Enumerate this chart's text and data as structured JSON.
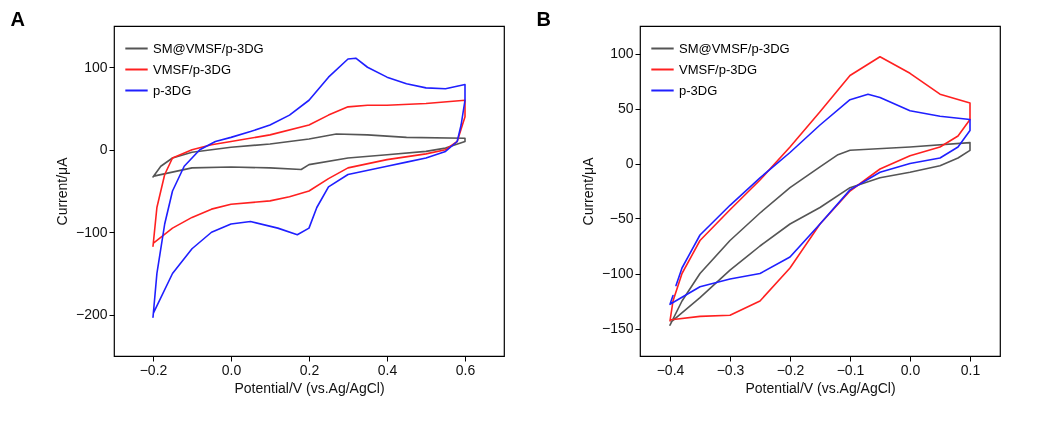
{
  "chart_data": [
    {
      "type": "line",
      "title": "A",
      "xlabel": "Potential/V (vs.Ag/AgCl)",
      "ylabel": "Current/μA",
      "xlim": [
        -0.3,
        0.7
      ],
      "ylim": [
        -250,
        150
      ],
      "xticks": [
        -0.2,
        {
          "value": 0,
          "label": "0.0"
        },
        0.2,
        0.4,
        0.6
      ],
      "yticks": [
        -200,
        -100,
        0,
        100
      ],
      "grid": false,
      "legend": "top left",
      "series": [
        {
          "name": "SM@VMSF/p-3DG",
          "color": "#555555",
          "line_style": "solid",
          "x": [
            -0.2,
            -0.18,
            -0.15,
            -0.1,
            0,
            0.1,
            0.2,
            0.27,
            0.35,
            0.45,
            0.6,
            0.6,
            0.55,
            0.5,
            0.4,
            0.3,
            0.2,
            0.18,
            0.1,
            0,
            -0.1,
            -0.198
          ],
          "values": [
            -33,
            -20,
            -10,
            -3,
            3,
            7,
            13,
            19,
            18,
            15,
            14,
            10,
            2,
            -2,
            -6,
            -10,
            -18,
            -24,
            -22,
            -21,
            -22,
            -32
          ]
        },
        {
          "name": "VMSF/p-3DG",
          "color": "#ff2020",
          "line_style": "solid",
          "x": [
            -0.2,
            -0.19,
            -0.17,
            -0.15,
            -0.1,
            -0.05,
            0,
            0.1,
            0.2,
            0.25,
            0.3,
            0.35,
            0.4,
            0.5,
            0.6,
            0.6,
            0.58,
            0.55,
            0.5,
            0.4,
            0.3,
            0.25,
            0.2,
            0.15,
            0.1,
            0,
            -0.05,
            -0.1,
            -0.15,
            -0.198
          ],
          "values": [
            -117,
            -70,
            -30,
            -10,
            0,
            6,
            10,
            18,
            30,
            42,
            52,
            54,
            54,
            56,
            60,
            40,
            10,
            0,
            -5,
            -12,
            -22,
            -35,
            -50,
            -57,
            -62,
            -66,
            -72,
            -82,
            -95,
            -113
          ]
        },
        {
          "name": "p-3DG",
          "color": "#1f1fff",
          "line_style": "solid",
          "x": [
            -0.2,
            -0.19,
            -0.17,
            -0.15,
            -0.12,
            -0.08,
            -0.04,
            0,
            0.05,
            0.1,
            0.15,
            0.2,
            0.25,
            0.3,
            0.32,
            0.35,
            0.4,
            0.45,
            0.5,
            0.55,
            0.6,
            0.6,
            0.59,
            0.58,
            0.55,
            0.5,
            0.45,
            0.4,
            0.3,
            0.25,
            0.22,
            0.2,
            0.17,
            0.12,
            0.05,
            0,
            -0.05,
            -0.1,
            -0.15,
            -0.199
          ],
          "values": [
            -203,
            -150,
            -90,
            -50,
            -20,
            0,
            10,
            15,
            22,
            30,
            42,
            60,
            88,
            110,
            111,
            100,
            88,
            80,
            75,
            74,
            79,
            60,
            30,
            10,
            -2,
            -10,
            -15,
            -20,
            -30,
            -45,
            -70,
            -95,
            -103,
            -95,
            -87,
            -90,
            -100,
            -120,
            -150,
            -198
          ]
        }
      ]
    },
    {
      "type": "line",
      "title": "B",
      "xlabel": "Potential/V (vs.Ag/AgCl)",
      "ylabel": "Current/μA",
      "xlim": [
        -0.45,
        0.15
      ],
      "ylim": [
        -175,
        125
      ],
      "xticks": [
        -0.4,
        -0.3,
        -0.2,
        -0.1,
        {
          "value": 0,
          "label": "0.0"
        },
        0.1
      ],
      "yticks": [
        -150,
        -100,
        -50,
        0,
        50,
        100
      ],
      "grid": false,
      "legend": "top left",
      "series": [
        {
          "name": "SM@VMSF/p-3DG",
          "color": "#555555",
          "line_style": "solid",
          "x": [
            -0.4,
            -0.38,
            -0.35,
            -0.3,
            -0.25,
            -0.2,
            -0.15,
            -0.12,
            -0.1,
            0,
            0.1,
            0.1,
            0.08,
            0.05,
            0,
            -0.05,
            -0.1,
            -0.15,
            -0.2,
            -0.25,
            -0.3,
            -0.35,
            -0.398
          ],
          "values": [
            -147,
            -125,
            -100,
            -70,
            -45,
            -22,
            -3,
            8,
            12,
            15,
            19,
            12,
            5,
            -2,
            -8,
            -13,
            -22,
            -40,
            -55,
            -75,
            -97,
            -122,
            -144
          ]
        },
        {
          "name": "VMSF/p-3DG",
          "color": "#ff2020",
          "line_style": "solid",
          "x": [
            -0.4,
            -0.395,
            -0.38,
            -0.35,
            -0.3,
            -0.25,
            -0.2,
            -0.15,
            -0.1,
            -0.05,
            0,
            0.05,
            0.1,
            0.1,
            0.08,
            0.05,
            0,
            -0.05,
            -0.1,
            -0.15,
            -0.2,
            -0.25,
            -0.3,
            -0.35,
            -0.398
          ],
          "values": [
            -143,
            -125,
            -100,
            -70,
            -42,
            -15,
            15,
            47,
            80,
            97,
            82,
            63,
            55,
            40,
            25,
            15,
            7,
            -5,
            -25,
            -55,
            -95,
            -125,
            -138,
            -139,
            -142
          ]
        },
        {
          "name": "p-3DG",
          "color": "#1f1fff",
          "line_style": "solid",
          "x": [
            -0.39,
            -0.38,
            -0.35,
            -0.3,
            -0.25,
            -0.2,
            -0.15,
            -0.1,
            -0.07,
            -0.05,
            0,
            0.05,
            0.1,
            0.1,
            0.08,
            0.05,
            0,
            -0.05,
            -0.1,
            -0.15,
            -0.2,
            -0.25,
            -0.3,
            -0.35,
            -0.4,
            -0.395
          ],
          "values": [
            -111,
            -95,
            -65,
            -38,
            -13,
            10,
            35,
            58,
            63,
            60,
            48,
            43,
            40,
            30,
            15,
            5,
            0,
            -8,
            -24,
            -55,
            -85,
            -100,
            -105,
            -112,
            -128,
            -120
          ]
        }
      ]
    }
  ]
}
